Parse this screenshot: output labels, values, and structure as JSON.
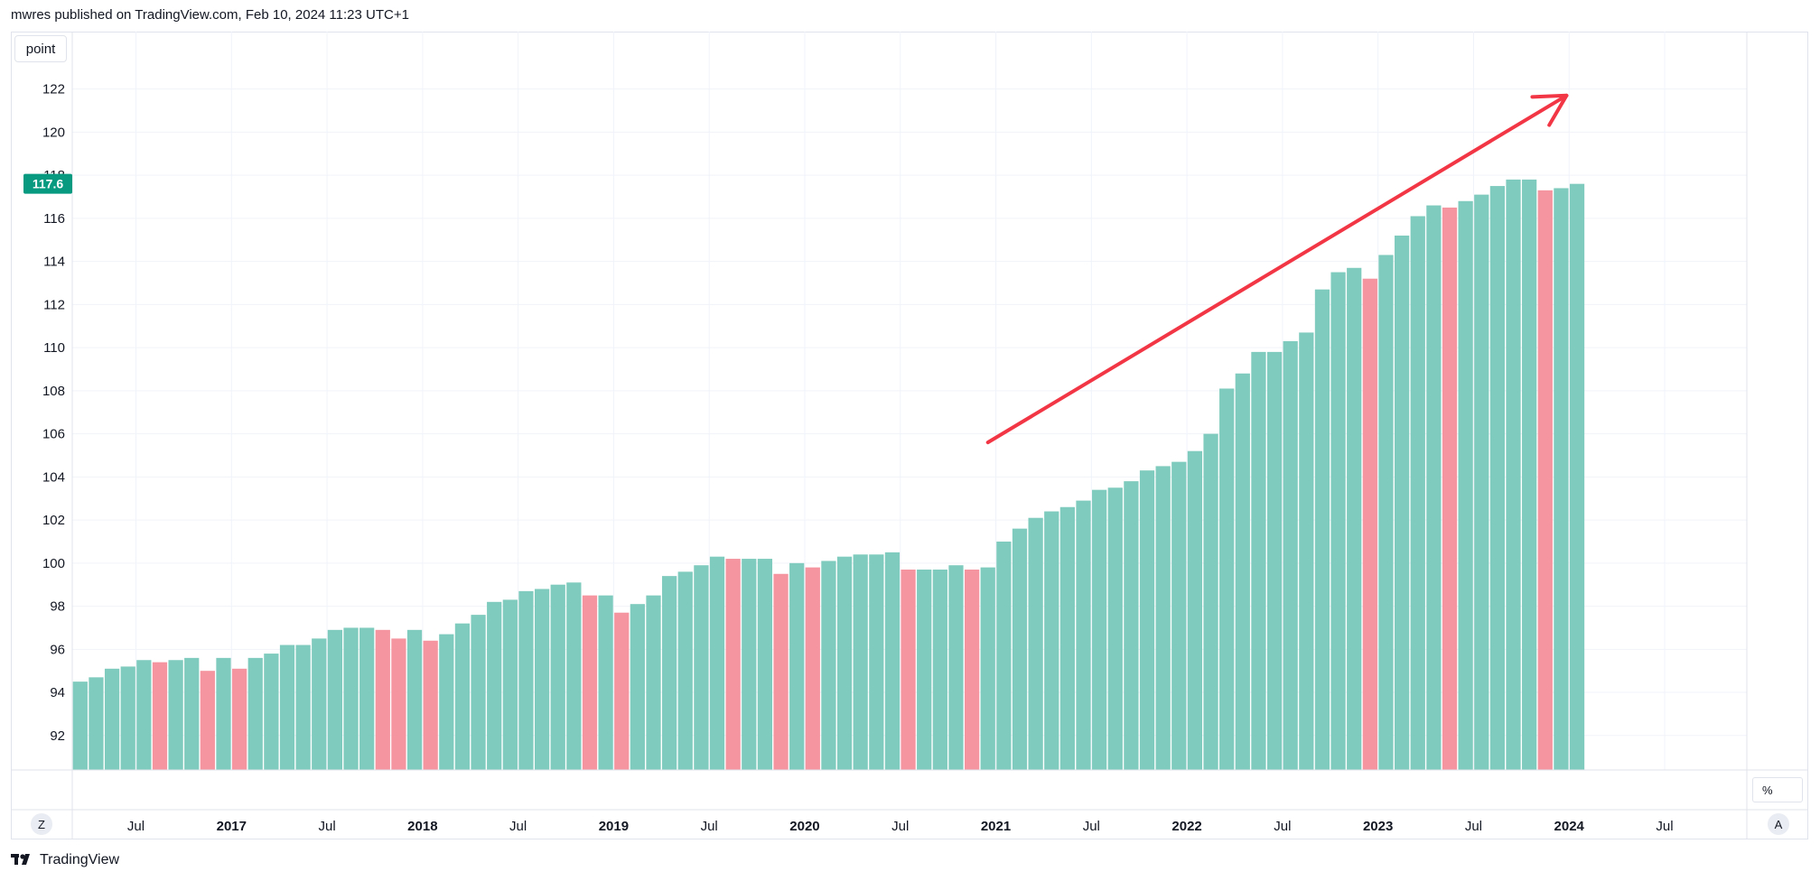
{
  "header": {
    "published_text": "mwres published on TradingView.com, Feb 10, 2024 11:23 UTC+1"
  },
  "toolbar": {
    "unit_label": "point",
    "z_label": "Z",
    "a_label": "A",
    "percent_label": "%"
  },
  "footer": {
    "brand_name": "TradingView",
    "logo_icon": "tradingview-logo-icon"
  },
  "colors": {
    "up": "#7fcbbd",
    "down": "#f4959f",
    "badge": "#089981",
    "arrow": "#f23645",
    "grid": "#f0f3fa"
  },
  "chart_data": {
    "type": "bar",
    "title": "",
    "xlabel": "",
    "ylabel": "",
    "ylim": [
      90.4,
      123.2
    ],
    "yticks": [
      92,
      94,
      96,
      98,
      100,
      102,
      104,
      106,
      108,
      110,
      112,
      114,
      116,
      118,
      120,
      122
    ],
    "last_value_label": "117.6",
    "x_tick_labels": [
      "Jul",
      "2017",
      "Jul",
      "2018",
      "Jul",
      "2019",
      "Jul",
      "2020",
      "Jul",
      "2021",
      "Jul",
      "2022",
      "Jul",
      "2023",
      "Jul",
      "2024",
      "Jul"
    ],
    "x_tick_dates": [
      "2016-07",
      "2017-01",
      "2017-07",
      "2018-01",
      "2018-07",
      "2019-01",
      "2019-07",
      "2020-01",
      "2020-07",
      "2021-01",
      "2021-07",
      "2022-01",
      "2022-07",
      "2023-01",
      "2023-07",
      "2024-01",
      "2024-07"
    ],
    "x_tick_bold": [
      false,
      true,
      false,
      true,
      false,
      true,
      false,
      true,
      false,
      true,
      false,
      true,
      false,
      true,
      false,
      true,
      false
    ],
    "series": [
      {
        "categories": [
          "2016-03",
          "2016-04",
          "2016-05",
          "2016-06",
          "2016-07",
          "2016-08",
          "2016-09",
          "2016-10",
          "2016-11",
          "2016-12",
          "2017-01",
          "2017-02",
          "2017-03",
          "2017-04",
          "2017-05",
          "2017-06",
          "2017-07",
          "2017-08",
          "2017-09",
          "2017-10",
          "2017-11",
          "2017-12",
          "2018-01",
          "2018-02",
          "2018-03",
          "2018-04",
          "2018-05",
          "2018-06",
          "2018-07",
          "2018-08",
          "2018-09",
          "2018-10",
          "2018-11",
          "2018-12",
          "2019-01",
          "2019-02",
          "2019-03",
          "2019-04",
          "2019-05",
          "2019-06",
          "2019-07",
          "2019-08",
          "2019-09",
          "2019-10",
          "2019-11",
          "2019-12",
          "2020-01",
          "2020-02",
          "2020-03",
          "2020-04",
          "2020-05",
          "2020-06",
          "2020-07",
          "2020-08",
          "2020-09",
          "2020-10",
          "2020-11",
          "2020-12",
          "2021-01",
          "2021-02",
          "2021-03",
          "2021-04",
          "2021-05",
          "2021-06",
          "2021-07",
          "2021-08",
          "2021-09",
          "2021-10",
          "2021-11",
          "2021-12",
          "2022-01",
          "2022-02",
          "2022-03",
          "2022-04",
          "2022-05",
          "2022-06",
          "2022-07",
          "2022-08",
          "2022-09",
          "2022-10",
          "2022-11",
          "2022-12",
          "2023-01",
          "2023-02",
          "2023-03",
          "2023-04",
          "2023-05",
          "2023-06",
          "2023-07",
          "2023-08",
          "2023-09",
          "2023-10",
          "2023-11",
          "2023-12",
          "2024-01"
        ],
        "values": [
          94.5,
          94.7,
          95.1,
          95.2,
          95.5,
          95.4,
          95.5,
          95.6,
          95.0,
          95.6,
          95.1,
          95.6,
          95.8,
          96.2,
          96.2,
          96.5,
          96.9,
          97.0,
          97.0,
          96.9,
          96.5,
          96.9,
          96.4,
          96.7,
          97.2,
          97.6,
          98.2,
          98.3,
          98.7,
          98.8,
          99.0,
          99.1,
          98.5,
          98.5,
          97.7,
          98.1,
          98.5,
          99.4,
          99.6,
          99.9,
          100.3,
          100.2,
          100.2,
          100.2,
          99.5,
          100.0,
          99.8,
          100.1,
          100.3,
          100.4,
          100.4,
          100.5,
          99.7,
          99.7,
          99.7,
          99.9,
          99.7,
          99.8,
          101.0,
          101.6,
          102.1,
          102.4,
          102.6,
          102.9,
          103.4,
          103.5,
          103.8,
          104.3,
          104.5,
          104.7,
          105.2,
          106.0,
          108.1,
          108.8,
          109.8,
          109.8,
          110.3,
          110.7,
          112.7,
          113.5,
          113.7,
          113.2,
          114.3,
          115.2,
          116.1,
          116.6,
          116.5,
          116.8,
          117.1,
          117.5,
          117.8,
          117.8,
          117.3,
          117.4,
          117.6
        ],
        "directions": [
          "up",
          "up",
          "up",
          "up",
          "up",
          "down",
          "up",
          "up",
          "down",
          "up",
          "down",
          "up",
          "up",
          "up",
          "up",
          "up",
          "up",
          "up",
          "up",
          "down",
          "down",
          "up",
          "down",
          "up",
          "up",
          "up",
          "up",
          "up",
          "up",
          "up",
          "up",
          "up",
          "down",
          "up",
          "down",
          "up",
          "up",
          "up",
          "up",
          "up",
          "up",
          "down",
          "up",
          "up",
          "down",
          "up",
          "down",
          "up",
          "up",
          "up",
          "up",
          "up",
          "down",
          "up",
          "up",
          "up",
          "down",
          "up",
          "up",
          "up",
          "up",
          "up",
          "up",
          "up",
          "up",
          "up",
          "up",
          "up",
          "up",
          "up",
          "up",
          "up",
          "up",
          "up",
          "up",
          "up",
          "up",
          "up",
          "up",
          "up",
          "up",
          "down",
          "up",
          "up",
          "up",
          "up",
          "down",
          "up",
          "up",
          "up",
          "up",
          "up",
          "down",
          "up",
          "up"
        ]
      }
    ],
    "annotation": {
      "type": "arrow",
      "from": {
        "date": "2020-12",
        "value": 105.6
      },
      "to": {
        "date": "2023-12",
        "value": 121.7
      }
    }
  }
}
